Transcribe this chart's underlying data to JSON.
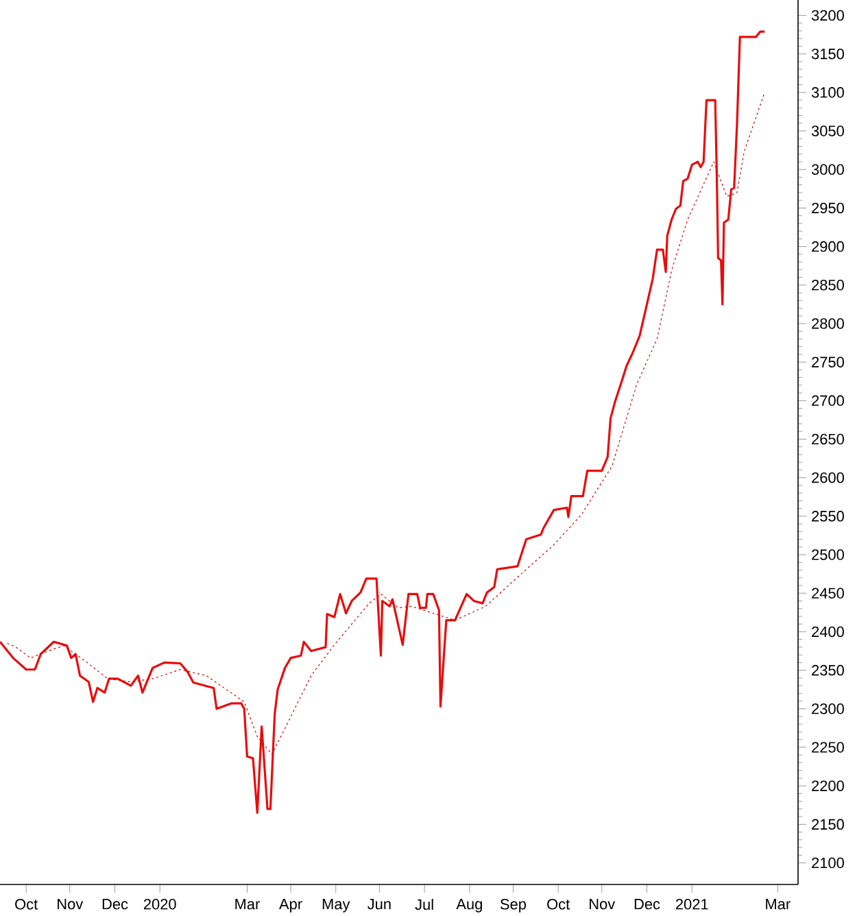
{
  "chart_data": {
    "type": "line",
    "x": [
      "2019-09-28",
      "2019-10-07",
      "2019-10-16",
      "2019-10-22",
      "2019-10-26",
      "2019-11-04",
      "2019-11-13",
      "2019-11-16",
      "2019-11-19",
      "2019-11-22",
      "2019-11-28",
      "2019-12-01",
      "2019-12-04",
      "2019-12-09",
      "2019-12-12",
      "2019-12-18",
      "2019-12-27",
      "2020-01-01",
      "2020-01-04",
      "2020-01-11",
      "2020-01-19",
      "2020-01-30",
      "2020-02-04",
      "2020-02-08",
      "2020-02-22",
      "2020-02-24",
      "2020-03-05",
      "2020-03-12",
      "2020-03-14",
      "2020-03-16",
      "2020-03-20",
      "2020-03-23",
      "2020-03-26",
      "2020-03-30",
      "2020-04-01",
      "2020-04-04",
      "2020-04-06",
      "2020-04-11",
      "2020-04-15",
      "2020-04-22",
      "2020-04-24",
      "2020-04-29",
      "2020-05-09",
      "2020-05-10",
      "2020-05-15",
      "2020-05-19",
      "2020-05-23",
      "2020-05-27",
      "2020-06-02",
      "2020-06-06",
      "2020-06-13",
      "2020-06-16",
      "2020-06-17",
      "2020-06-22",
      "2020-06-24",
      "2020-07-01",
      "2020-07-05",
      "2020-07-11",
      "2020-07-13",
      "2020-07-17",
      "2020-07-18",
      "2020-07-22",
      "2020-07-26",
      "2020-07-27",
      "2020-07-31",
      "2020-08-06",
      "2020-08-14",
      "2020-08-19",
      "2020-08-25",
      "2020-08-28",
      "2020-09-02",
      "2020-09-04",
      "2020-09-18",
      "2020-09-24",
      "2020-10-04",
      "2020-10-06",
      "2020-10-13",
      "2020-10-22",
      "2020-10-23",
      "2020-10-25",
      "2020-11-02",
      "2020-11-05",
      "2020-11-15",
      "2020-11-19",
      "2020-11-21",
      "2020-11-24",
      "2020-11-29",
      "2020-12-02",
      "2020-12-06",
      "2020-12-11",
      "2020-12-16",
      "2020-12-20",
      "2020-12-23",
      "2020-12-27",
      "2020-12-29",
      "2020-12-30",
      "2021-01-02",
      "2021-01-05",
      "2021-01-08",
      "2021-01-10",
      "2021-01-13",
      "2021-01-16",
      "2021-01-20",
      "2021-01-22",
      "2021-01-24",
      "2021-01-26",
      "2021-02-01",
      "2021-02-02",
      "2021-02-03",
      "2021-02-05",
      "2021-02-06",
      "2021-02-07",
      "2021-02-10",
      "2021-02-12",
      "2021-02-14",
      "2021-02-16",
      "2021-02-17",
      "2021-02-18",
      "2021-03-01",
      "2021-03-04",
      "2021-03-07"
    ],
    "series": [
      {
        "color": "#e80c0c",
        "line_style": "solid",
        "values": [
          2387,
          2366,
          2351,
          2351,
          2371,
          2387,
          2382,
          2366,
          2371,
          2343,
          2335,
          2309,
          2327,
          2321,
          2339,
          2339,
          2330,
          2343,
          2321,
          2353,
          2360,
          2359,
          2348,
          2334,
          2327,
          2300,
          2307,
          2307,
          2300,
          2238,
          2236,
          2165,
          2277,
          2170,
          2170,
          2294,
          2325,
          2353,
          2366,
          2369,
          2387,
          2375,
          2380,
          2423,
          2419,
          2449,
          2424,
          2440,
          2451,
          2469,
          2469,
          2369,
          2440,
          2433,
          2442,
          2383,
          2449,
          2449,
          2431,
          2431,
          2449,
          2449,
          2428,
          2303,
          2415,
          2415,
          2449,
          2440,
          2437,
          2451,
          2458,
          2481,
          2485,
          2520,
          2526,
          2535,
          2558,
          2561,
          2549,
          2576,
          2576,
          2609,
          2609,
          2627,
          2677,
          2698,
          2727,
          2745,
          2761,
          2784,
          2825,
          2858,
          2896,
          2896,
          2867,
          2914,
          2935,
          2949,
          2953,
          2985,
          2988,
          3006,
          3010,
          3003,
          3010,
          3090,
          3090,
          3001,
          2885,
          2882,
          2825,
          2931,
          2935,
          2974,
          2976,
          3059,
          3116,
          3172,
          3172,
          3179,
          3179
        ]
      },
      {
        "color": "#cc0000",
        "line_style": "dotted",
        "x": [
          "2019-10-03",
          "2019-10-09",
          "2019-10-19",
          "2019-10-31",
          "2019-11-11",
          "2019-11-27",
          "2019-12-11",
          "2019-12-27",
          "2020-01-11",
          "2020-01-30",
          "2020-02-17",
          "2020-03-14",
          "2020-03-23",
          "2020-04-02",
          "2020-04-13",
          "2020-04-29",
          "2020-05-15",
          "2020-06-08",
          "2020-06-16",
          "2020-06-28",
          "2020-07-07",
          "2020-08-06",
          "2020-08-27",
          "2020-09-24",
          "2020-10-12",
          "2020-11-01",
          "2020-11-22",
          "2020-12-09",
          "2020-12-23",
          "2021-01-02",
          "2021-01-13",
          "2021-01-31",
          "2021-02-09",
          "2021-02-16",
          "2021-02-21",
          "2021-03-07"
        ],
        "values": [
          2385,
          2380,
          2366,
          2375,
          2382,
          2360,
          2339,
          2335,
          2339,
          2351,
          2343,
          2309,
          2264,
          2241,
          2282,
          2343,
          2383,
          2437,
          2449,
          2431,
          2433,
          2415,
          2433,
          2481,
          2511,
          2552,
          2615,
          2721,
          2780,
          2869,
          2935,
          3010,
          2965,
          2970,
          3024,
          3100
        ]
      }
    ],
    "xlim": [
      "2019-09-28",
      "2021-03-30"
    ],
    "xticks": [
      {
        "value": "2019-10-16",
        "label": "Oct"
      },
      {
        "value": "2019-11-15",
        "label": "Nov"
      },
      {
        "value": "2019-12-16",
        "label": "Dec"
      },
      {
        "value": "2020-01-16",
        "label": "2020"
      },
      {
        "value": "2020-03-16",
        "label": "Mar"
      },
      {
        "value": "2020-04-15",
        "label": "Apr"
      },
      {
        "value": "2020-05-16",
        "label": "May"
      },
      {
        "value": "2020-06-15",
        "label": "Jun"
      },
      {
        "value": "2020-07-16",
        "label": "Jul"
      },
      {
        "value": "2020-08-16",
        "label": "Aug"
      },
      {
        "value": "2020-09-15",
        "label": "Sep"
      },
      {
        "value": "2020-10-16",
        "label": "Oct"
      },
      {
        "value": "2020-11-15",
        "label": "Nov"
      },
      {
        "value": "2020-12-16",
        "label": "Dec"
      },
      {
        "value": "2021-01-16",
        "label": "2021"
      },
      {
        "value": "2021-03-16",
        "label": "Mar"
      }
    ],
    "ylim": [
      2072,
      3220
    ],
    "yticks": [
      2100,
      2150,
      2200,
      2250,
      2300,
      2350,
      2400,
      2450,
      2500,
      2550,
      2600,
      2650,
      2700,
      2750,
      2800,
      2850,
      2900,
      2950,
      3000,
      3050,
      3100,
      3150,
      3200
    ],
    "grid": false,
    "legend": false,
    "marker": "none"
  }
}
